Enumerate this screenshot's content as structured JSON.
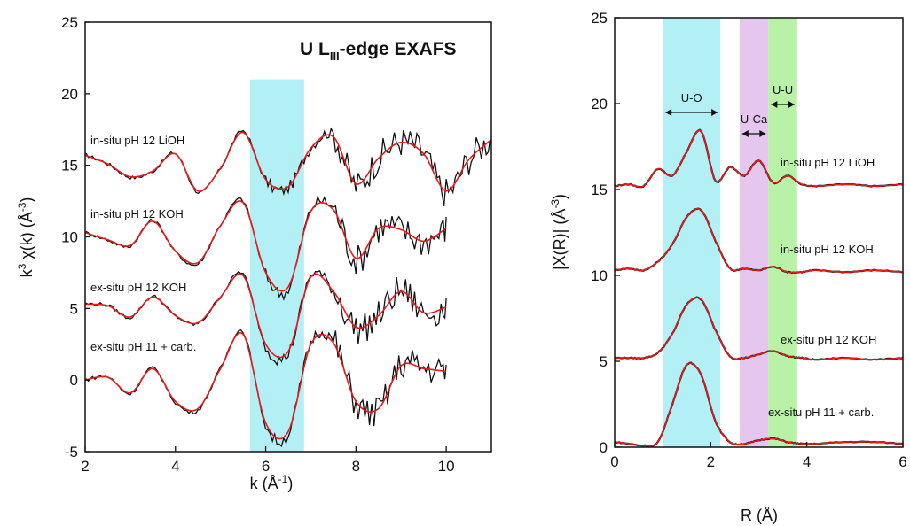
{
  "chart_data": [
    {
      "type": "line",
      "title_main": "U L",
      "title_sub": "III",
      "title_rest": "-edge EXAFS",
      "xlabel_main": "k (Å",
      "xlabel_sup": "-1",
      "xlabel_end": ")",
      "ylabel_k": "k",
      "ylabel_sup": "3",
      "ylabel_mid": " χ(k) (Å",
      "ylabel_sup2": "-3",
      "ylabel_end": ")",
      "xlim": [
        2,
        11
      ],
      "ylim": [
        -5,
        25
      ],
      "xticks": [
        "2",
        "4",
        "6",
        "8",
        "10"
      ],
      "yticks": [
        "-5",
        "0",
        "5",
        "10",
        "15",
        "20",
        "25"
      ],
      "highlight": {
        "range": [
          5.65,
          6.85
        ],
        "ytop": 21,
        "color": "#b3f0f5"
      },
      "colors": {
        "data": "#111111",
        "fit": "#e8191b"
      },
      "series": [
        {
          "label": "in-situ pH 12 LiOH",
          "offset": 15,
          "x": [
            2.0,
            2.5,
            3.0,
            3.5,
            4.0,
            4.5,
            5.0,
            5.5,
            6.0,
            6.5,
            7.0,
            7.5,
            8.0,
            8.5,
            9.0,
            9.5,
            10.0,
            10.5,
            11.0
          ],
          "y": [
            0.7,
            0.1,
            -0.8,
            -0.4,
            0.8,
            -1.8,
            -0.2,
            2.3,
            -1.0,
            -1.5,
            1.2,
            2.0,
            -1.3,
            0.5,
            1.6,
            0.8,
            -1.8,
            0.4,
            1.8
          ]
        },
        {
          "label": "in-situ pH 12 KOH",
          "offset": 10,
          "x": [
            2.0,
            2.5,
            3.0,
            3.5,
            4.0,
            4.5,
            5.0,
            5.5,
            6.0,
            6.5,
            7.0,
            7.5,
            8.0,
            8.5,
            9.0,
            9.5,
            10.0
          ],
          "y": [
            0.3,
            -0.2,
            -0.6,
            1.1,
            -1.0,
            -1.8,
            0.8,
            2.4,
            -2.5,
            -3.5,
            1.8,
            1.9,
            -1.5,
            0.6,
            0.5,
            -0.3,
            0.6
          ]
        },
        {
          "label": "ex-situ pH 12 KOH",
          "offset": 5,
          "x": [
            2.0,
            2.5,
            3.0,
            3.5,
            4.0,
            4.5,
            5.0,
            5.5,
            6.0,
            6.5,
            7.0,
            7.5,
            8.0,
            8.5,
            9.0,
            9.5,
            10.0
          ],
          "y": [
            0.3,
            0.2,
            -0.6,
            0.8,
            -0.5,
            -1.0,
            0.8,
            2.3,
            -2.5,
            -3.0,
            2.2,
            1.2,
            -1.3,
            -0.5,
            1.2,
            -0.3,
            0.1
          ]
        },
        {
          "label": "ex-situ pH 11 + carb.",
          "offset": 0,
          "x": [
            2.0,
            2.5,
            3.0,
            3.5,
            4.0,
            4.5,
            5.0,
            5.5,
            6.0,
            6.5,
            7.0,
            7.5,
            8.0,
            8.5,
            9.0,
            9.5,
            10.0
          ],
          "y": [
            0.0,
            0.2,
            -0.9,
            0.8,
            -1.5,
            -2.0,
            0.8,
            3.2,
            -3.0,
            -3.6,
            2.5,
            2.6,
            -1.5,
            -2.0,
            1.0,
            0.8,
            0.6
          ]
        }
      ]
    },
    {
      "type": "line",
      "xlabel": "R (Å)",
      "ylabel": "|X(R)| (Å",
      "ylabel_sup": "-3",
      "ylabel_end": ")",
      "xlim": [
        0,
        6
      ],
      "ylim": [
        0,
        25
      ],
      "xticks": [
        "0",
        "2",
        "4",
        "6"
      ],
      "yticks": [
        "0",
        "5",
        "10",
        "15",
        "20",
        "25"
      ],
      "bands": [
        {
          "name": "U-O",
          "range": [
            1.0,
            2.2
          ],
          "color": "#b3f0f5"
        },
        {
          "name": "U-Ca",
          "range": [
            2.6,
            3.2
          ],
          "color": "#e5c6ee"
        },
        {
          "name": "U-U",
          "range": [
            3.2,
            3.8
          ],
          "color": "#b8f2a7"
        }
      ],
      "colors": {
        "data": "#111111",
        "fit": "#e8191b"
      },
      "series": [
        {
          "label": "in-situ pH 12 LiOH",
          "offset": 15,
          "x": [
            0.0,
            0.3,
            0.6,
            0.9,
            1.2,
            1.5,
            1.8,
            2.1,
            2.4,
            2.7,
            3.0,
            3.3,
            3.6,
            3.9,
            4.2,
            4.8,
            5.4,
            6.0
          ],
          "y": [
            0.2,
            0.3,
            0.2,
            1.2,
            0.8,
            2.2,
            3.4,
            0.5,
            1.3,
            0.8,
            1.7,
            0.4,
            0.8,
            0.3,
            0.2,
            0.3,
            0.2,
            0.3
          ]
        },
        {
          "label": "in-situ pH 12 KOH",
          "offset": 10,
          "x": [
            0.0,
            0.3,
            0.6,
            0.9,
            1.2,
            1.5,
            1.8,
            2.1,
            2.4,
            2.7,
            3.0,
            3.3,
            3.6,
            3.9,
            4.2,
            4.8,
            5.4,
            6.0
          ],
          "y": [
            0.3,
            0.4,
            0.3,
            0.8,
            1.8,
            3.4,
            3.8,
            2.0,
            0.4,
            0.4,
            0.3,
            0.5,
            0.2,
            0.2,
            0.3,
            0.2,
            0.3,
            0.2
          ]
        },
        {
          "label": "ex-situ pH 12 KOH",
          "offset": 5,
          "x": [
            0.0,
            0.3,
            0.6,
            0.9,
            1.2,
            1.5,
            1.8,
            2.1,
            2.4,
            2.7,
            3.0,
            3.3,
            3.6,
            3.9,
            4.2,
            4.8,
            5.4,
            6.0
          ],
          "y": [
            0.2,
            0.2,
            0.2,
            0.5,
            1.6,
            3.3,
            3.6,
            1.8,
            0.3,
            0.2,
            0.4,
            0.6,
            0.3,
            0.2,
            0.1,
            0.2,
            0.1,
            0.2
          ]
        },
        {
          "label": "ex-situ pH 11 + carb.",
          "offset": 0,
          "x": [
            0.0,
            0.3,
            0.6,
            0.9,
            1.2,
            1.5,
            1.8,
            2.1,
            2.4,
            2.7,
            3.0,
            3.3,
            3.6,
            3.9,
            4.2,
            4.8,
            5.4,
            6.0
          ],
          "y": [
            0.3,
            0.2,
            0.1,
            0.3,
            2.5,
            4.8,
            4.2,
            1.5,
            0.3,
            0.2,
            0.4,
            0.5,
            0.3,
            0.2,
            0.2,
            0.3,
            0.3,
            0.2
          ]
        }
      ]
    }
  ]
}
